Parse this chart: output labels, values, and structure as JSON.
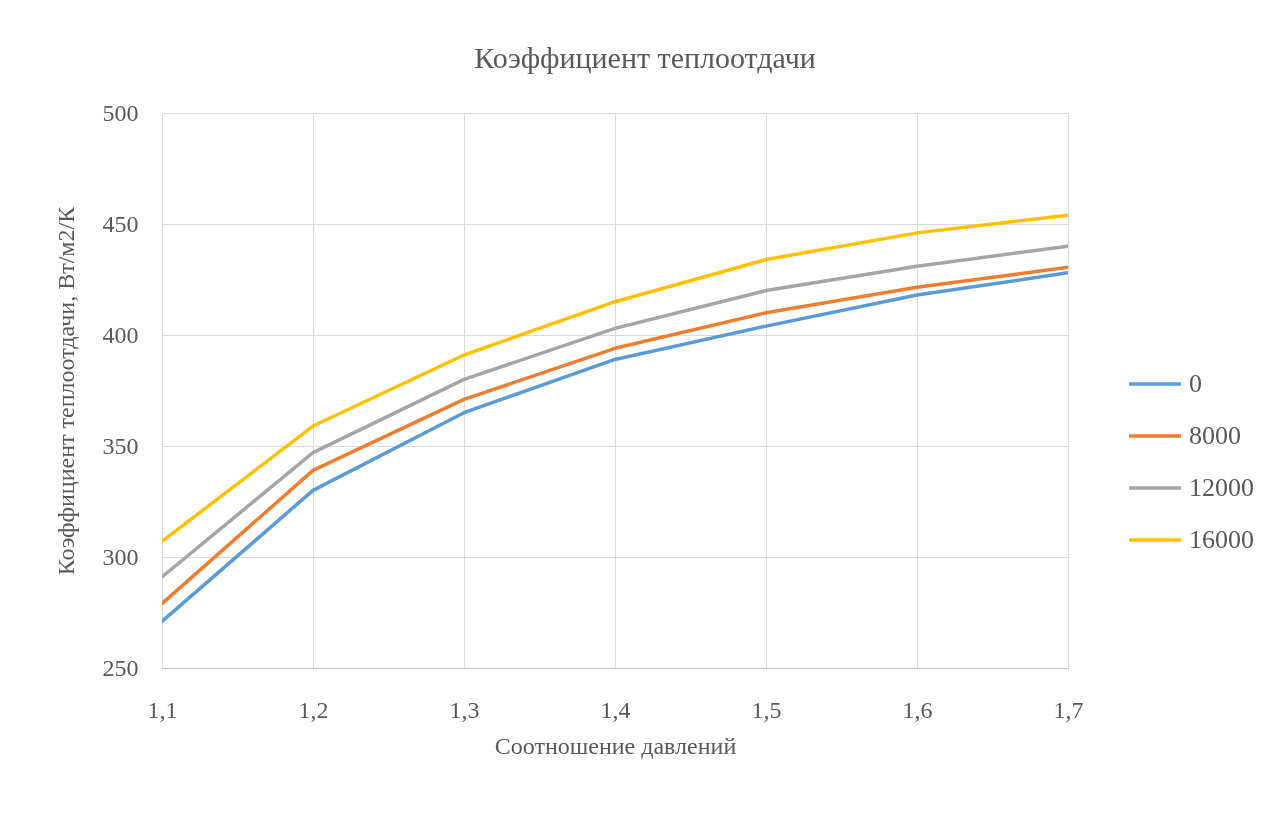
{
  "chart_data": {
    "type": "line",
    "title": "Коэффициент теплоотдачи",
    "xlabel": "Соотношение давлений",
    "ylabel": "Коэффициент теплоотдачи, Вт/м2/К",
    "x": [
      1.1,
      1.2,
      1.3,
      1.4,
      1.5,
      1.6,
      1.7
    ],
    "series": [
      {
        "name": "0",
        "color": "#5b9bd5",
        "values": [
          271,
          330,
          365,
          389,
          404,
          418,
          428
        ]
      },
      {
        "name": "8000",
        "color": "#ed7d31",
        "values": [
          279,
          339,
          371,
          394,
          410,
          421.5,
          430.5
        ]
      },
      {
        "name": "12000",
        "color": "#a5a5a5",
        "values": [
          291,
          347,
          380,
          403,
          420,
          431,
          440
        ]
      },
      {
        "name": "16000",
        "color": "#ffc000",
        "values": [
          307,
          359,
          391,
          415,
          434,
          446,
          454
        ]
      }
    ],
    "xlim": [
      1.1,
      1.7
    ],
    "xticks": [
      {
        "value": 1.1,
        "label": "1,1"
      },
      {
        "value": 1.2,
        "label": "1,2"
      },
      {
        "value": 1.3,
        "label": "1,3"
      },
      {
        "value": 1.4,
        "label": "1,4"
      },
      {
        "value": 1.5,
        "label": "1,5"
      },
      {
        "value": 1.6,
        "label": "1,6"
      },
      {
        "value": 1.7,
        "label": "1,7"
      }
    ],
    "ylim": [
      250,
      500
    ],
    "yticks": [
      250,
      300,
      350,
      400,
      450,
      500
    ],
    "grid": true,
    "legend": "right"
  }
}
